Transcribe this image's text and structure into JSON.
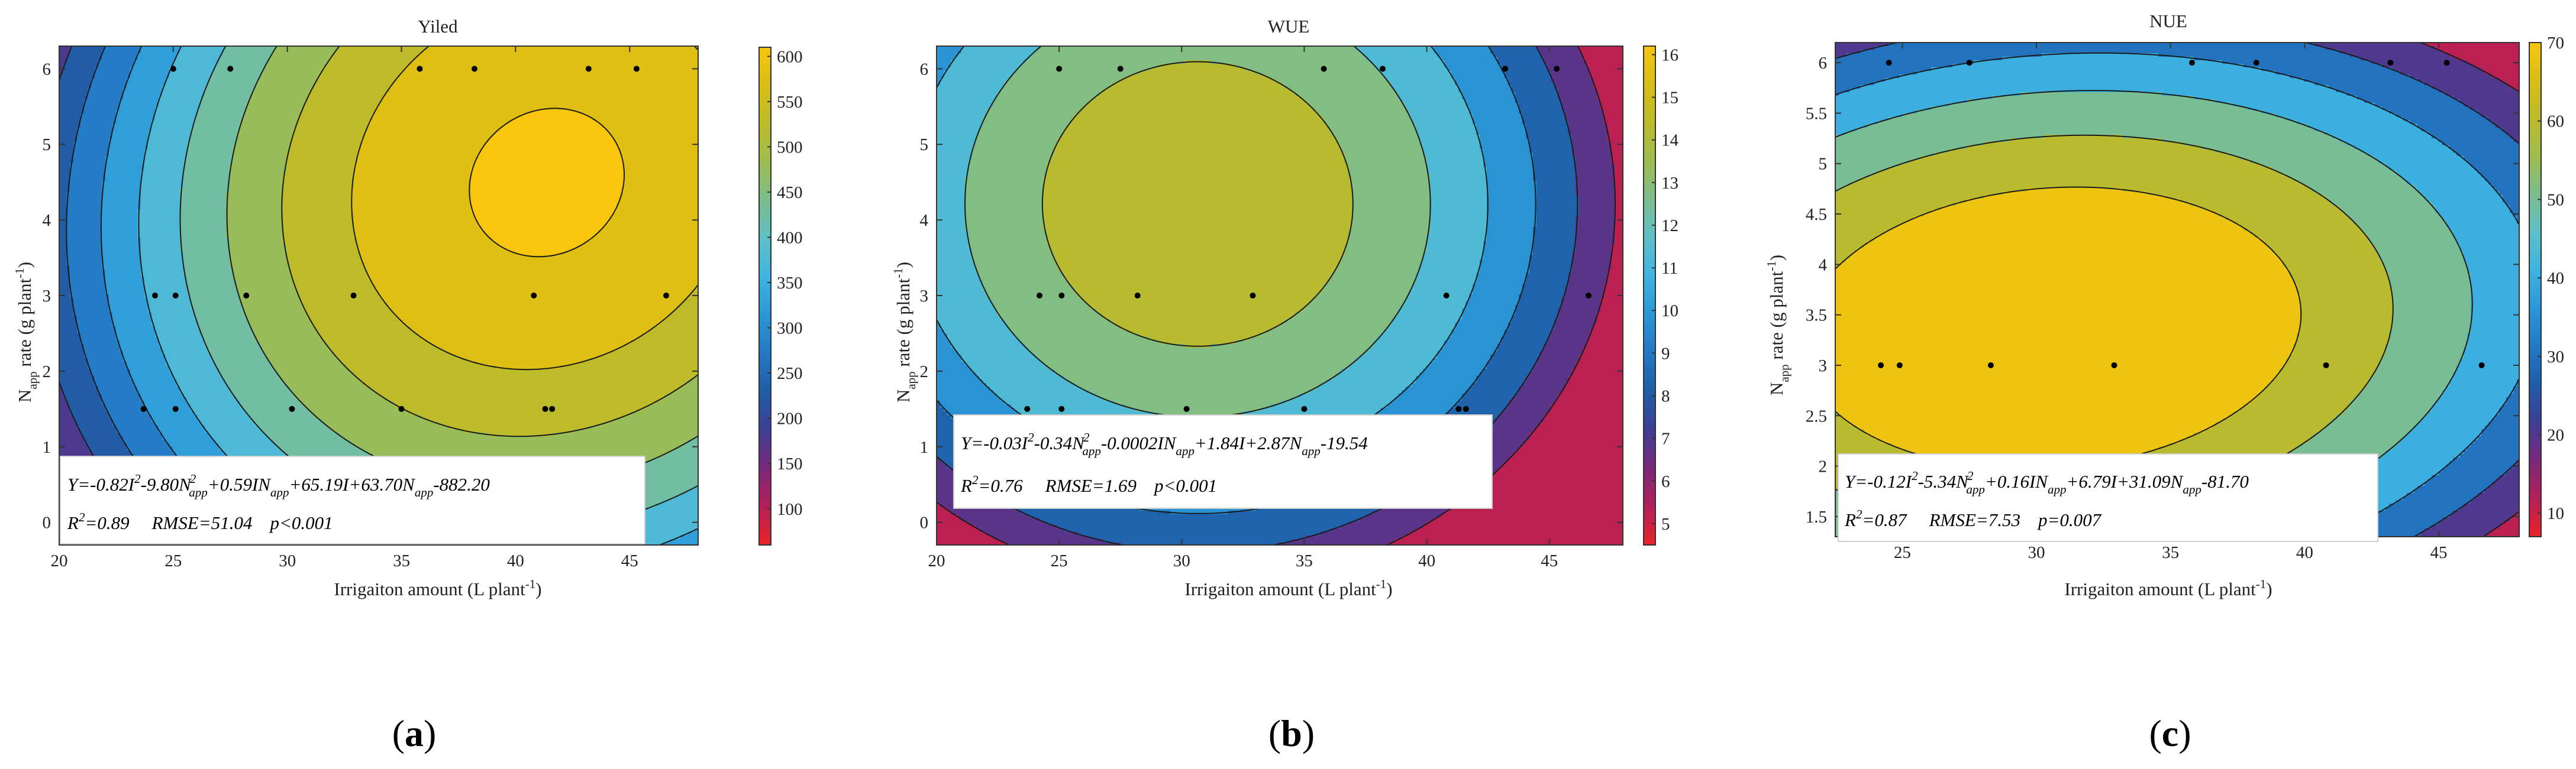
{
  "figure": {
    "panel_letters": [
      "a",
      "b",
      "c"
    ]
  },
  "chart_data": [
    {
      "type": "contour",
      "title": "Yiled",
      "xlabel": "Irrigaiton amount (L plant",
      "xlabel_sup": "-1",
      "xlabel_end": ")",
      "ylabel_sym": "N",
      "ylabel_sub": "app",
      "ylabel_rest": " rate (g plant",
      "ylabel_sup": "-1",
      "ylabel_end": ")",
      "xlim": [
        20,
        48
      ],
      "ylim": [
        -0.3,
        6.3
      ],
      "xticks": [
        20,
        25,
        30,
        35,
        40,
        45
      ],
      "yticks": [
        0,
        1,
        2,
        3,
        4,
        5,
        6
      ],
      "colorbar": {
        "ticks": [
          100,
          150,
          200,
          250,
          300,
          350,
          400,
          450,
          500,
          550,
          600
        ],
        "range": [
          60,
          610
        ]
      },
      "model": {
        "a": -0.82,
        "b": -9.8,
        "c": 0.59,
        "d": 65.19,
        "e": 63.7,
        "f": -882.2
      },
      "levels": [
        60,
        100,
        150,
        200,
        250,
        300,
        350,
        400,
        450,
        500,
        550,
        600
      ],
      "points_x": [
        25,
        27.5,
        35.8,
        38.2,
        43.2,
        45.3,
        24.2,
        25.1,
        28.2,
        32.9,
        40.8,
        46.6,
        23.7,
        25.1,
        30.2,
        35.0,
        41.3,
        41.6
      ],
      "points_y": [
        6,
        6,
        6,
        6,
        6,
        6,
        3,
        3,
        3,
        3,
        3,
        3,
        1.5,
        1.5,
        1.5,
        1.5,
        1.5,
        1.5
      ],
      "equation": {
        "lead": "Y=-0.82I",
        "p2": "2",
        "m1": "-9.80N",
        "s1": "app",
        "p3": "2",
        "m2": "+0.59IN",
        "s2": "app",
        "m3": "+65.19I+63.70N",
        "s3": "app",
        "tail": "-882.20"
      },
      "stats": {
        "r2_lead": "R",
        "r2_sup": "2",
        "r2_val": "=0.89",
        "rmse": "RMSE=51.04",
        "p": "p<0.001"
      }
    },
    {
      "type": "contour",
      "title": "WUE",
      "xlabel": "Irrigaiton amount (L plant",
      "xlabel_sup": "-1",
      "xlabel_end": ")",
      "ylabel_sym": "N",
      "ylabel_sub": "app",
      "ylabel_rest": " rate (g plant",
      "ylabel_sup": "-1",
      "ylabel_end": ")",
      "xlim": [
        20,
        48
      ],
      "ylim": [
        -0.3,
        6.3
      ],
      "xticks": [
        20,
        25,
        30,
        35,
        40,
        45
      ],
      "yticks": [
        0,
        1,
        2,
        3,
        4,
        5,
        6
      ],
      "colorbar": {
        "ticks": [
          5,
          6,
          7,
          8,
          9,
          10,
          11,
          12,
          13,
          14,
          15,
          16
        ],
        "range": [
          4.5,
          16.2
        ]
      },
      "model": {
        "a": -0.03,
        "b": -0.34,
        "c": -0.0002,
        "d": 1.84,
        "e": 2.87,
        "f": -19.54
      },
      "levels": [
        4.5,
        6,
        7.5,
        9,
        10.5,
        12,
        13.5,
        15
      ],
      "points_x": [
        25,
        27.5,
        35.8,
        38.2,
        43.2,
        45.3,
        24.2,
        25.1,
        28.2,
        32.9,
        40.8,
        46.6,
        23.7,
        25.1,
        30.2,
        35.0,
        41.3,
        41.6
      ],
      "points_y": [
        6,
        6,
        6,
        6,
        6,
        6,
        3,
        3,
        3,
        3,
        3,
        3,
        1.5,
        1.5,
        1.5,
        1.5,
        1.5,
        1.5
      ],
      "equation": {
        "lead": "Y=-0.03I",
        "p2": "2",
        "m1": "-0.34N",
        "s1": "app",
        "p3": "2",
        "m2": "-0.0002IN",
        "s2": "app",
        "m3": "+1.84I+2.87N",
        "s3": "app",
        "tail": "-19.54"
      },
      "stats": {
        "r2_lead": "R",
        "r2_sup": "2",
        "r2_val": "=0.76",
        "rmse": "RMSE=1.69",
        "p": "p<0.001"
      }
    },
    {
      "type": "contour",
      "title": "NUE",
      "xlabel": "Irrigaiton amount (L plant",
      "xlabel_sup": "-1",
      "xlabel_end": ")",
      "ylabel_sym": "N",
      "ylabel_sub": "app",
      "ylabel_rest": " rate (g plant",
      "ylabel_sup": "-1",
      "ylabel_end": ")",
      "xlim": [
        22.5,
        48
      ],
      "ylim": [
        1.3,
        6.2
      ],
      "xticks": [
        25,
        30,
        35,
        40,
        45
      ],
      "yticks": [
        1.5,
        2,
        2.5,
        3,
        3.5,
        4,
        4.5,
        5,
        5.5,
        6
      ],
      "colorbar": {
        "ticks": [
          10,
          20,
          30,
          40,
          50,
          60,
          70
        ],
        "range": [
          7,
          70
        ]
      },
      "model": {
        "a": -0.12,
        "b": -5.34,
        "c": 0.16,
        "d": 6.79,
        "e": 31.09,
        "f": -81.7
      },
      "levels": [
        7,
        15,
        25,
        35,
        45,
        55,
        64
      ],
      "points_x": [
        24.5,
        27.5,
        35.8,
        38.2,
        43.2,
        45.3,
        24.2,
        24.9,
        28.3,
        32.9,
        40.8,
        46.6
      ],
      "points_y": [
        6,
        6,
        6,
        6,
        6,
        6,
        3,
        3,
        3,
        3,
        3,
        3
      ],
      "equation": {
        "lead": "Y=-0.12I",
        "p2": "2",
        "m1": "-5.34N",
        "s1": "app",
        "p3": "2",
        "m2": "+0.16IN",
        "s2": "app",
        "m3": "+6.79I+31.09N",
        "s3": "app",
        "tail": "-81.70"
      },
      "stats": {
        "r2_lead": "R",
        "r2_sup": "2",
        "r2_val": "=0.87",
        "rmse": "RMSE=7.53",
        "p": "p=0.007"
      }
    }
  ],
  "palette": {
    "stops": [
      "#e8232a",
      "#b21f59",
      "#79287c",
      "#3b3f95",
      "#1f5ea8",
      "#2479c5",
      "#2a98d6",
      "#3fb4e2",
      "#5fc0c6",
      "#7cbd8c",
      "#9fbd4c",
      "#bdbb2a",
      "#d9be14",
      "#f9c60e"
    ]
  }
}
